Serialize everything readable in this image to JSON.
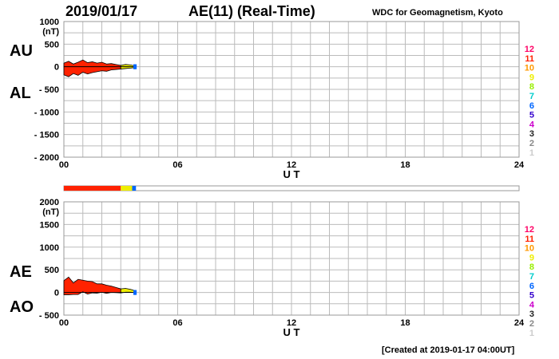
{
  "header": {
    "date": "2019/01/17",
    "title": "AE(11) (Real-Time)",
    "source": "WDC for Geomagnetism, Kyoto"
  },
  "footer": {
    "created": "[Created at 2019-01-17 04:00UT]"
  },
  "level_colors": {
    "12": "#ff0066",
    "11": "#ff2200",
    "10": "#ff9900",
    "9": "#eeee00",
    "8": "#99ee00",
    "7": "#00cccc",
    "6": "#0066ff",
    "5": "#3300cc",
    "4": "#cc00cc",
    "3": "#222222",
    "2": "#888888",
    "1": "#cccccc"
  },
  "chart_data": [
    {
      "type": "area",
      "series_labels": [
        "AU",
        "AL"
      ],
      "ylabel": "(nT)",
      "xlabel": "U T",
      "x_ticks": [
        "00",
        "06",
        "12",
        "18",
        "24"
      ],
      "y_ticks": [
        1000,
        500,
        0,
        -500,
        -1000,
        -1500,
        -2000
      ],
      "y_tick_labels": [
        "1000",
        "500",
        "0",
        "- 500",
        "- 1000",
        "- 1500",
        "- 2000"
      ],
      "xlim": [
        0,
        24
      ],
      "ylim": [
        -2000,
        1000
      ],
      "legend_levels": [
        "12",
        "11",
        "10",
        "9",
        "8",
        "7",
        "6",
        "5",
        "4",
        "3",
        "2",
        "1"
      ],
      "x": [
        0,
        0.25,
        0.5,
        0.75,
        1.0,
        1.25,
        1.5,
        1.75,
        2.0,
        2.25,
        2.5,
        2.75,
        3.0,
        3.25,
        3.5,
        3.75
      ],
      "AU": [
        80,
        120,
        60,
        100,
        150,
        90,
        110,
        80,
        100,
        60,
        70,
        50,
        30,
        50,
        40,
        20
      ],
      "AL": [
        -180,
        -220,
        -150,
        -190,
        -120,
        -160,
        -130,
        -110,
        -90,
        -100,
        -70,
        -60,
        -50,
        -40,
        -30,
        -20
      ]
    },
    {
      "type": "area",
      "series_labels": [
        "AE",
        "AO"
      ],
      "ylabel": "(nT)",
      "xlabel": "U T",
      "x_ticks": [
        "00",
        "06",
        "12",
        "18",
        "24"
      ],
      "y_ticks": [
        2000,
        1500,
        1000,
        500,
        0,
        -500
      ],
      "y_tick_labels": [
        "2000",
        "1500",
        "1000",
        "500",
        "0",
        "- 500"
      ],
      "xlim": [
        0,
        24
      ],
      "ylim": [
        -500,
        2000
      ],
      "legend_levels": [
        "12",
        "11",
        "10",
        "9",
        "8",
        "7",
        "6",
        "5",
        "4",
        "3",
        "2",
        "1"
      ],
      "x": [
        0,
        0.25,
        0.5,
        0.75,
        1.0,
        1.25,
        1.5,
        1.75,
        2.0,
        2.25,
        2.5,
        2.75,
        3.0,
        3.25,
        3.5,
        3.75
      ],
      "AE": [
        260,
        340,
        210,
        290,
        270,
        250,
        240,
        190,
        190,
        160,
        140,
        110,
        80,
        90,
        70,
        40
      ],
      "AO": [
        -50,
        -50,
        -45,
        -45,
        15,
        -35,
        -10,
        -15,
        5,
        -20,
        0,
        -5,
        -10,
        5,
        5,
        0
      ]
    }
  ],
  "activity_bar": [
    {
      "from": 0,
      "to": 3.0,
      "level": "11"
    },
    {
      "from": 3.0,
      "to": 3.6,
      "level": "9"
    },
    {
      "from": 3.6,
      "to": 3.8,
      "level": "6"
    }
  ]
}
